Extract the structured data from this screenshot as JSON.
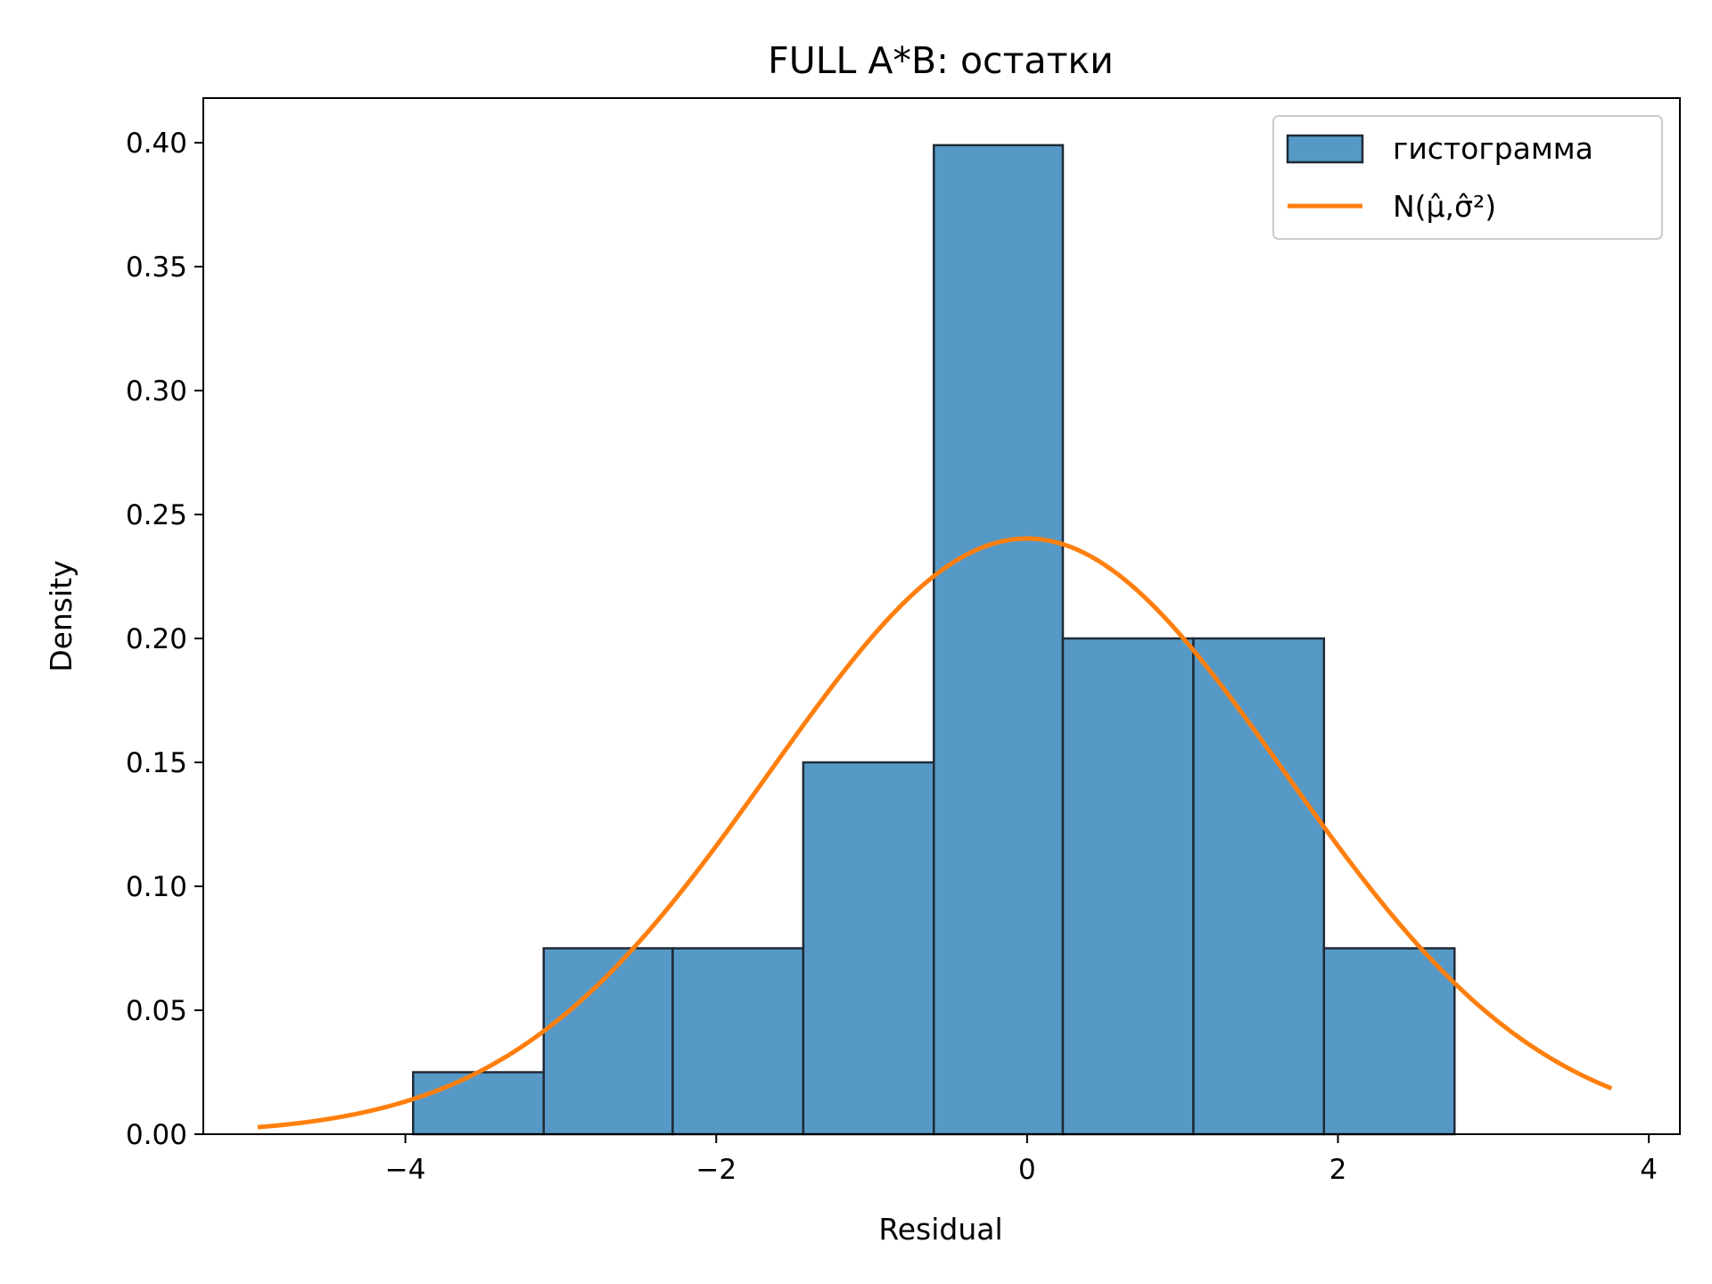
{
  "chart_data": {
    "type": "bar",
    "title": "FULL  A*B: остатки",
    "xlabel": "Residual",
    "ylabel": "Density",
    "xlim": [
      -5.3,
      4.2
    ],
    "ylim": [
      0,
      0.418
    ],
    "xticks": [
      -4,
      -2,
      0,
      2,
      4
    ],
    "xtick_labels": [
      "−4",
      "−2",
      "0",
      "2",
      "4"
    ],
    "yticks": [
      0,
      0.05,
      0.1,
      0.15,
      0.2,
      0.25,
      0.3,
      0.35,
      0.4
    ],
    "ytick_labels": [
      "0.00",
      "0.05",
      "0.10",
      "0.15",
      "0.20",
      "0.25",
      "0.30",
      "0.35",
      "0.40"
    ],
    "grid": false,
    "legend_position": "top-right",
    "series": [
      {
        "name": "гистограмма",
        "kind": "histogram",
        "color": "#5799c6",
        "edge_color": "#1f2a36",
        "bin_edges": [
          -3.95,
          -3.11,
          -2.28,
          -1.44,
          -0.6,
          0.23,
          1.07,
          1.91,
          2.75
        ],
        "values": [
          0.025,
          0.075,
          0.075,
          0.15,
          0.399,
          0.2,
          0.2,
          0.075
        ]
      },
      {
        "name": "N(μ̂,σ̂²)",
        "kind": "normal-curve",
        "color": "#ff7f0e",
        "mean": 0.0,
        "std": 1.66,
        "x_range": [
          -4.95,
          3.76
        ]
      }
    ]
  }
}
